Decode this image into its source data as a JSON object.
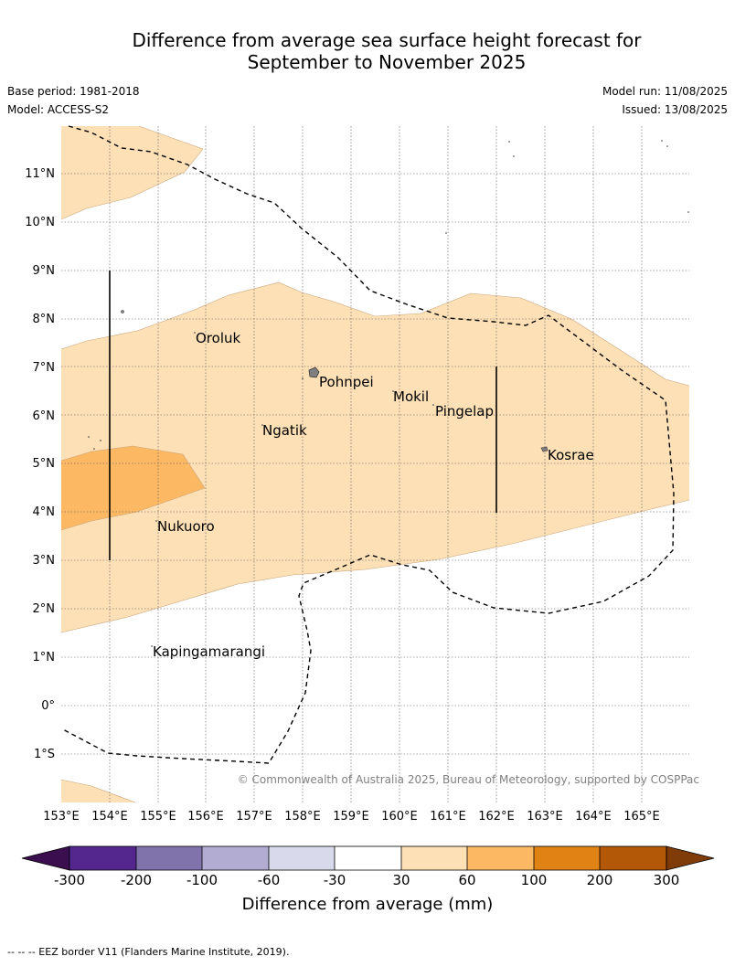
{
  "title_line1": "Difference from average sea surface height forecast for",
  "title_line2": "September to November 2025",
  "meta": {
    "base_period": "Base period: 1981-2018",
    "model": "Model: ACCESS-S2",
    "model_run": "Model run: 11/08/2025",
    "issued": "Issued: 13/08/2025"
  },
  "lat_labels": [
    "11°N",
    "10°N",
    "9°N",
    "8°N",
    "7°N",
    "6°N",
    "5°N",
    "4°N",
    "3°N",
    "2°N",
    "1°N",
    "0°",
    "1°S"
  ],
  "lon_labels": [
    "153°E",
    "154°E",
    "155°E",
    "156°E",
    "157°E",
    "158°E",
    "159°E",
    "160°E",
    "161°E",
    "162°E",
    "163°E",
    "164°E",
    "165°E"
  ],
  "places": {
    "oroluk": "Oroluk",
    "pohnpei": "Pohnpei",
    "mokil": "Mokil",
    "pingelap": "Pingelap",
    "ngatik": "Ngatik",
    "kosrae": "Kosrae",
    "nukuoro": "Nukuoro",
    "kapingamarangi": "Kapingamarangi"
  },
  "copyright": "© Commonwealth of Australia 2025, Bureau of Meteorology, supported by COSPPac",
  "colorbar": {
    "title": "Difference from average (mm)",
    "ticks": [
      "-300",
      "-200",
      "-100",
      "-60",
      "-30",
      "30",
      "60",
      "100",
      "200",
      "300"
    ],
    "colors": {
      "extend_low": "#3b0f4f",
      "b1": "#54278f",
      "b2": "#8073ac",
      "b3": "#b2abd2",
      "b4": "#d8daeb",
      "b5": "#ffffff",
      "b6": "#fee0b6",
      "b7": "#fdb863",
      "b8": "#e08214",
      "b9": "#b35806",
      "extend_high": "#7f3b08"
    }
  },
  "footer": "-- -- -- EEZ border V11 (Flanders Marine Institute, 2019)."
}
